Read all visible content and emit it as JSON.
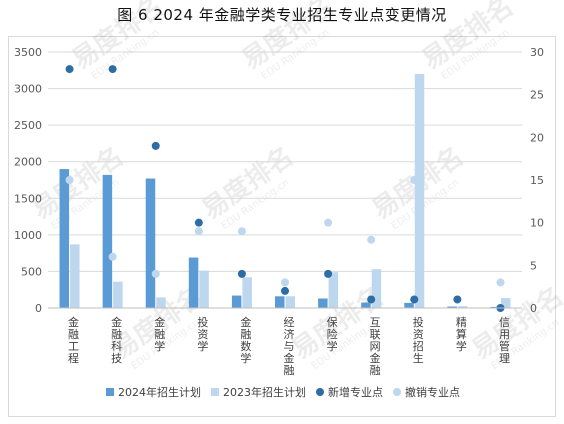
{
  "title": "图 6  2024 年金融学类专业招生专业点变更情况",
  "watermark": {
    "brand": "易度排名",
    "subtitle": "EDU Ranking.cn"
  },
  "chart_data": {
    "type": "bar",
    "title": "图 6  2024 年金融学类专业招生专业点变更情况",
    "categories": [
      "金融工程",
      "金融科技",
      "金融学",
      "投资学",
      "金融数学",
      "经济与金融",
      "保险学",
      "互联网金融",
      "投资招生",
      "精算学",
      "信用管理"
    ],
    "y_left": {
      "min": 0,
      "max": 3500,
      "ticks": [
        0,
        500,
        1000,
        1500,
        2000,
        2500,
        3000,
        3500
      ]
    },
    "y_right": {
      "min": 0,
      "max": 30,
      "ticks": [
        0,
        5,
        10,
        15,
        20,
        25,
        30
      ]
    },
    "grid": true,
    "legend_position": "bottom",
    "series": [
      {
        "name": "2024年招生计划",
        "kind": "bar",
        "axis": "left",
        "color": "#5b9bd5",
        "values": [
          1900,
          1820,
          1770,
          690,
          170,
          160,
          130,
          75,
          70,
          20,
          15
        ]
      },
      {
        "name": "2023年招生计划",
        "kind": "bar",
        "axis": "left",
        "color": "#bdd7ee",
        "values": [
          870,
          360,
          145,
          510,
          420,
          160,
          490,
          530,
          3200,
          25,
          135
        ]
      },
      {
        "name": "新增专业点",
        "kind": "scatter",
        "axis": "right",
        "color": "#2e6da4",
        "values": [
          28,
          28,
          19,
          10,
          4,
          2,
          4,
          1,
          1,
          1,
          0
        ]
      },
      {
        "name": "撤销专业点",
        "kind": "scatter",
        "axis": "right",
        "color": "#bdd7ee",
        "values": [
          15,
          6,
          4,
          9,
          9,
          3,
          10,
          8,
          15,
          null,
          3
        ]
      }
    ]
  }
}
